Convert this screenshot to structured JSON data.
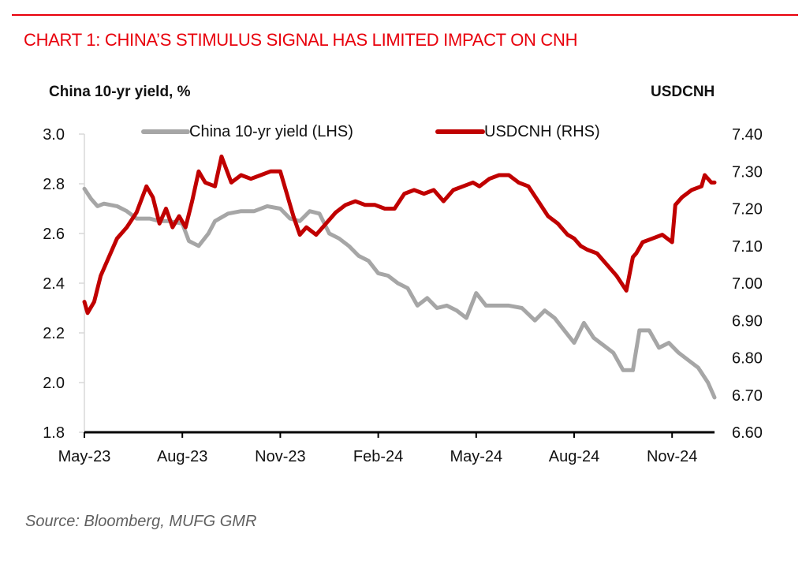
{
  "title": "CHART 1:  CHINA’S STIMULUS SIGNAL HAS LIMITED IMPACT ON CNH",
  "source": "Source: Bloomberg, MUFG GMR",
  "colors": {
    "accent": "#e8000b",
    "yield": "#a6a6a6",
    "usdcnh": "#c00000",
    "axis": "#000000"
  },
  "chart_data": {
    "type": "line",
    "title": "CHART 1:  CHINA’S STIMULUS SIGNAL HAS LIMITED IMPACT ON CNH",
    "ylabel_left": "China 10-yr yield, %",
    "ylabel_right": "USDCNH",
    "x_unit": "months since May-23",
    "x_ticks": [
      {
        "x": 0,
        "label": "May-23"
      },
      {
        "x": 3,
        "label": "Aug-23"
      },
      {
        "x": 6,
        "label": "Nov-23"
      },
      {
        "x": 9,
        "label": "Feb-24"
      },
      {
        "x": 12,
        "label": "May-24"
      },
      {
        "x": 15,
        "label": "Aug-24"
      },
      {
        "x": 18,
        "label": "Nov-24"
      }
    ],
    "xlim": [
      0,
      19.3
    ],
    "ylim_left": [
      1.8,
      3.0
    ],
    "ylim_right": [
      6.6,
      7.4
    ],
    "yticks_left": [
      "3.0",
      "2.8",
      "2.6",
      "2.4",
      "2.2",
      "2.0",
      "1.8"
    ],
    "yticks_right": [
      "7.40",
      "7.30",
      "7.20",
      "7.10",
      "7.00",
      "6.90",
      "6.80",
      "6.70",
      "6.60"
    ],
    "legend": [
      "China 10-yr yield (LHS)",
      "USDCNH (RHS)"
    ],
    "legend_position": "top",
    "grid": false,
    "series": [
      {
        "name": "China 10-yr yield (LHS)",
        "axis": "left",
        "x": [
          0,
          0.2,
          0.4,
          0.6,
          1.0,
          1.3,
          1.6,
          2.0,
          2.3,
          2.6,
          3.0,
          3.2,
          3.5,
          3.8,
          4.0,
          4.4,
          4.8,
          5.2,
          5.6,
          6.0,
          6.3,
          6.6,
          6.9,
          7.2,
          7.5,
          7.8,
          8.1,
          8.4,
          8.7,
          9.0,
          9.3,
          9.6,
          9.9,
          10.2,
          10.5,
          10.8,
          11.1,
          11.4,
          11.7,
          12.0,
          12.3,
          12.7,
          13.0,
          13.4,
          13.8,
          14.1,
          14.4,
          14.7,
          15.0,
          15.3,
          15.6,
          15.9,
          16.2,
          16.5,
          16.8,
          17.0,
          17.3,
          17.6,
          17.9,
          18.2,
          18.5,
          18.8,
          19.1,
          19.3
        ],
        "values": [
          2.78,
          2.74,
          2.71,
          2.72,
          2.71,
          2.69,
          2.66,
          2.66,
          2.65,
          2.65,
          2.64,
          2.57,
          2.55,
          2.6,
          2.65,
          2.68,
          2.69,
          2.69,
          2.71,
          2.7,
          2.66,
          2.65,
          2.69,
          2.68,
          2.6,
          2.58,
          2.55,
          2.51,
          2.49,
          2.44,
          2.43,
          2.4,
          2.38,
          2.31,
          2.34,
          2.3,
          2.31,
          2.29,
          2.26,
          2.36,
          2.31,
          2.31,
          2.31,
          2.3,
          2.25,
          2.29,
          2.26,
          2.21,
          2.16,
          2.24,
          2.18,
          2.15,
          2.12,
          2.05,
          2.05,
          2.21,
          2.21,
          2.14,
          2.16,
          2.12,
          2.09,
          2.06,
          2.0,
          1.94
        ]
      },
      {
        "name": "USDCNH (RHS)",
        "axis": "right",
        "x": [
          0,
          0.1,
          0.3,
          0.5,
          0.8,
          1.0,
          1.3,
          1.6,
          1.9,
          2.1,
          2.3,
          2.5,
          2.7,
          2.9,
          3.1,
          3.3,
          3.5,
          3.7,
          4.0,
          4.2,
          4.5,
          4.8,
          5.1,
          5.4,
          5.7,
          6.0,
          6.2,
          6.4,
          6.6,
          6.8,
          7.1,
          7.4,
          7.7,
          8.0,
          8.3,
          8.6,
          8.9,
          9.2,
          9.5,
          9.8,
          10.1,
          10.4,
          10.7,
          11.0,
          11.3,
          11.6,
          11.9,
          12.1,
          12.4,
          12.7,
          13.0,
          13.3,
          13.6,
          13.9,
          14.2,
          14.5,
          14.8,
          15.0,
          15.2,
          15.4,
          15.7,
          16.0,
          16.3,
          16.6,
          16.8,
          16.9,
          17.1,
          17.4,
          17.7,
          18.0,
          18.1,
          18.3,
          18.6,
          18.9,
          19.0,
          19.2,
          19.3
        ],
        "values": [
          6.95,
          6.92,
          6.95,
          7.02,
          7.08,
          7.12,
          7.15,
          7.19,
          7.26,
          7.23,
          7.16,
          7.2,
          7.15,
          7.18,
          7.15,
          7.22,
          7.3,
          7.27,
          7.26,
          7.34,
          7.27,
          7.29,
          7.28,
          7.29,
          7.3,
          7.3,
          7.24,
          7.18,
          7.13,
          7.15,
          7.13,
          7.16,
          7.19,
          7.21,
          7.22,
          7.21,
          7.21,
          7.2,
          7.2,
          7.24,
          7.25,
          7.24,
          7.25,
          7.22,
          7.25,
          7.26,
          7.27,
          7.26,
          7.28,
          7.29,
          7.29,
          7.27,
          7.26,
          7.22,
          7.18,
          7.16,
          7.13,
          7.12,
          7.1,
          7.09,
          7.08,
          7.05,
          7.02,
          6.98,
          7.07,
          7.08,
          7.11,
          7.12,
          7.13,
          7.11,
          7.21,
          7.23,
          7.25,
          7.26,
          7.29,
          7.27,
          7.27
        ]
      }
    ]
  }
}
